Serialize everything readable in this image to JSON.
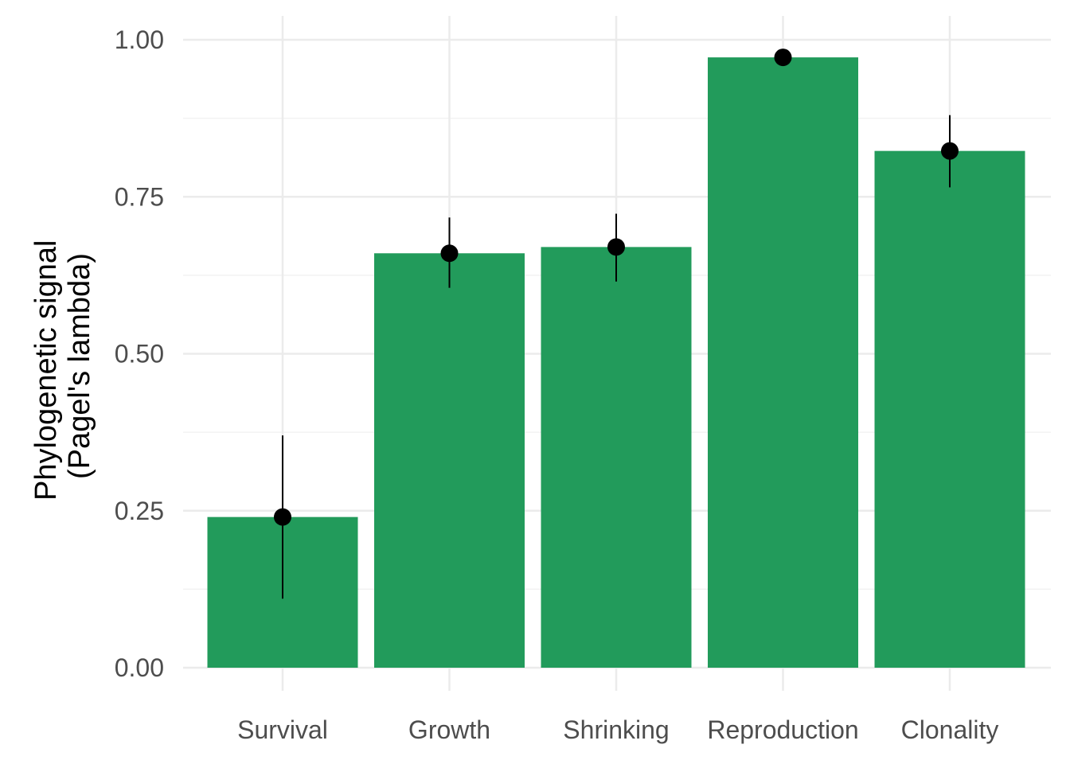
{
  "chart_data": {
    "type": "bar",
    "ylabel_lines": [
      "Phylogenetic signal",
      "(Pagel's lambda)"
    ],
    "xlabel": "",
    "categories": [
      "Survival",
      "Growth",
      "Shrinking",
      "Reproduction",
      "Clonality"
    ],
    "values": [
      0.24,
      0.66,
      0.67,
      0.972,
      0.823
    ],
    "error_low": [
      0.11,
      0.605,
      0.615,
      0.972,
      0.765
    ],
    "error_high": [
      0.37,
      0.717,
      0.723,
      0.972,
      0.88
    ],
    "ylim": [
      0,
      1
    ],
    "yticks": [
      0,
      0.25,
      0.5,
      0.75,
      1
    ],
    "ytick_labels": [
      "0.00",
      "0.25",
      "0.50",
      "0.75",
      "1.00"
    ],
    "grid": true,
    "legend": "none",
    "colors": {
      "bar": "#229b5b",
      "point": "#000000",
      "grid_major": "#ebebeb",
      "grid_minor": "#f2f2f2"
    }
  }
}
